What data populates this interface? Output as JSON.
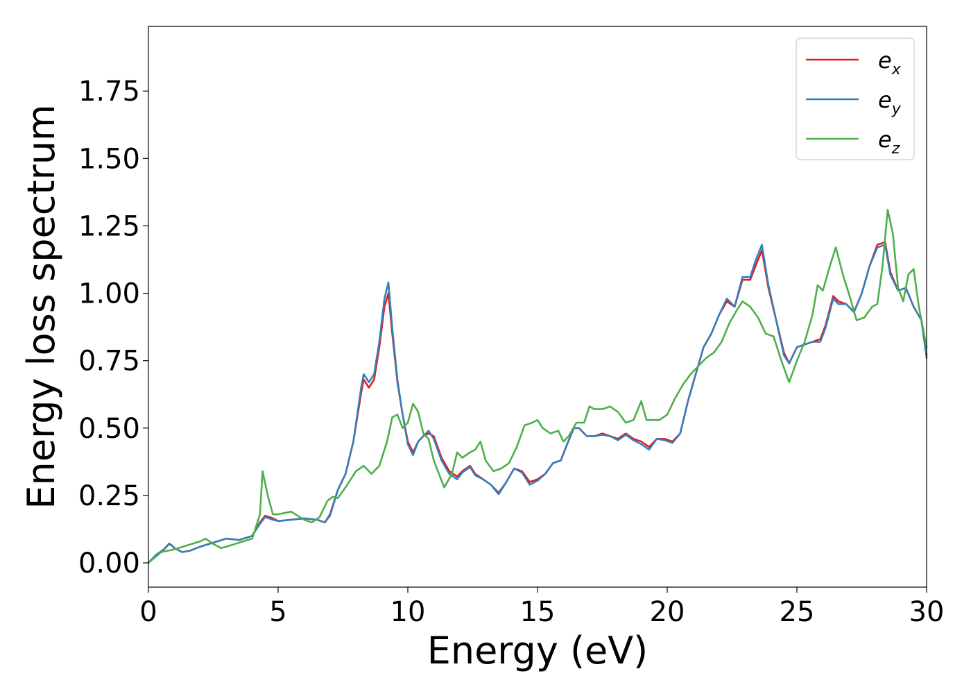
{
  "chart_data": {
    "type": "line",
    "title": "",
    "xlabel": "Energy (eV)",
    "ylabel": "Energy loss spectrum",
    "xlim": [
      0,
      30
    ],
    "ylim": [
      -0.09,
      1.99
    ],
    "xticks": [
      0,
      5,
      10,
      15,
      20,
      25,
      30
    ],
    "xtick_labels": [
      "0",
      "5",
      "10",
      "15",
      "20",
      "25",
      "30"
    ],
    "yticks": [
      0.0,
      0.25,
      0.5,
      0.75,
      1.0,
      1.25,
      1.5,
      1.75
    ],
    "ytick_labels": [
      "0.00",
      "0.25",
      "0.50",
      "0.75",
      "1.00",
      "1.25",
      "1.50",
      "1.75"
    ],
    "grid": false,
    "legend_position": "top-right",
    "series": [
      {
        "name": "e",
        "sub": "x",
        "color": "#e41a1c",
        "x": [
          0,
          0.3,
          0.6,
          0.8,
          0.9,
          1.0,
          1.3,
          1.6,
          2.0,
          2.5,
          3.0,
          3.5,
          4.0,
          4.3,
          4.5,
          4.8,
          5.0,
          5.5,
          6.0,
          6.5,
          6.8,
          7.0,
          7.3,
          7.6,
          7.9,
          8.2,
          8.3,
          8.5,
          8.7,
          8.9,
          9.1,
          9.25,
          9.4,
          9.6,
          9.8,
          10.0,
          10.2,
          10.4,
          10.6,
          10.8,
          11.0,
          11.3,
          11.6,
          11.9,
          12.1,
          12.4,
          12.6,
          12.9,
          13.2,
          13.5,
          13.8,
          14.1,
          14.4,
          14.7,
          15.0,
          15.3,
          15.6,
          15.9,
          16.1,
          16.4,
          16.6,
          16.9,
          17.2,
          17.5,
          17.8,
          18.1,
          18.4,
          18.7,
          19.0,
          19.3,
          19.6,
          19.9,
          20.2,
          20.5,
          20.8,
          21.1,
          21.4,
          21.7,
          22.0,
          22.3,
          22.6,
          22.9,
          23.2,
          23.4,
          23.65,
          23.9,
          24.2,
          24.5,
          24.7,
          25.0,
          25.3,
          25.6,
          25.9,
          26.1,
          26.4,
          26.6,
          26.9,
          27.2,
          27.5,
          27.8,
          28.1,
          28.4,
          28.6,
          28.9,
          29.2,
          29.5,
          29.8,
          30.0
        ],
        "y": [
          0,
          0.03,
          0.05,
          0.07,
          0.065,
          0.055,
          0.04,
          0.045,
          0.06,
          0.075,
          0.09,
          0.085,
          0.1,
          0.15,
          0.175,
          0.165,
          0.155,
          0.16,
          0.165,
          0.16,
          0.15,
          0.18,
          0.27,
          0.33,
          0.45,
          0.63,
          0.68,
          0.65,
          0.68,
          0.8,
          0.95,
          1.0,
          0.85,
          0.67,
          0.55,
          0.45,
          0.41,
          0.45,
          0.47,
          0.48,
          0.47,
          0.39,
          0.34,
          0.32,
          0.34,
          0.36,
          0.33,
          0.31,
          0.29,
          0.26,
          0.3,
          0.35,
          0.34,
          0.3,
          0.31,
          0.33,
          0.37,
          0.38,
          0.43,
          0.5,
          0.5,
          0.47,
          0.47,
          0.48,
          0.47,
          0.46,
          0.48,
          0.46,
          0.45,
          0.43,
          0.46,
          0.46,
          0.45,
          0.48,
          0.6,
          0.7,
          0.8,
          0.85,
          0.92,
          0.97,
          0.95,
          1.05,
          1.05,
          1.1,
          1.16,
          1.02,
          0.9,
          0.78,
          0.74,
          0.8,
          0.81,
          0.82,
          0.83,
          0.88,
          0.99,
          0.97,
          0.96,
          0.93,
          1.0,
          1.1,
          1.18,
          1.19,
          1.08,
          1.01,
          1.02,
          0.95,
          0.9,
          0.77
        ]
      },
      {
        "name": "e",
        "sub": "y",
        "color": "#377eb8",
        "x": [
          0,
          0.3,
          0.6,
          0.8,
          0.9,
          1.0,
          1.3,
          1.6,
          2.0,
          2.5,
          3.0,
          3.5,
          4.0,
          4.3,
          4.5,
          4.8,
          5.0,
          5.5,
          6.0,
          6.5,
          6.8,
          7.0,
          7.3,
          7.6,
          7.9,
          8.2,
          8.3,
          8.5,
          8.7,
          8.9,
          9.1,
          9.25,
          9.4,
          9.6,
          9.8,
          10.0,
          10.2,
          10.4,
          10.6,
          10.8,
          11.0,
          11.3,
          11.6,
          11.9,
          12.1,
          12.4,
          12.6,
          12.9,
          13.2,
          13.5,
          13.8,
          14.1,
          14.4,
          14.7,
          15.0,
          15.3,
          15.6,
          15.9,
          16.1,
          16.4,
          16.6,
          16.9,
          17.2,
          17.5,
          17.8,
          18.1,
          18.4,
          18.7,
          19.0,
          19.3,
          19.6,
          19.9,
          20.2,
          20.5,
          20.8,
          21.1,
          21.4,
          21.7,
          22.0,
          22.3,
          22.6,
          22.9,
          23.2,
          23.4,
          23.65,
          23.9,
          24.2,
          24.5,
          24.7,
          25.0,
          25.3,
          25.6,
          25.9,
          26.1,
          26.4,
          26.6,
          26.9,
          27.2,
          27.5,
          27.8,
          28.1,
          28.4,
          28.6,
          28.9,
          29.2,
          29.5,
          29.8,
          30.0
        ],
        "y": [
          0,
          0.03,
          0.05,
          0.072,
          0.065,
          0.055,
          0.04,
          0.045,
          0.06,
          0.075,
          0.09,
          0.085,
          0.1,
          0.145,
          0.17,
          0.16,
          0.155,
          0.16,
          0.165,
          0.16,
          0.15,
          0.175,
          0.27,
          0.33,
          0.45,
          0.65,
          0.7,
          0.67,
          0.7,
          0.82,
          0.98,
          1.04,
          0.87,
          0.68,
          0.55,
          0.44,
          0.4,
          0.45,
          0.47,
          0.49,
          0.46,
          0.38,
          0.33,
          0.31,
          0.335,
          0.355,
          0.325,
          0.31,
          0.29,
          0.255,
          0.3,
          0.35,
          0.335,
          0.29,
          0.305,
          0.33,
          0.37,
          0.38,
          0.43,
          0.5,
          0.5,
          0.47,
          0.47,
          0.475,
          0.47,
          0.455,
          0.475,
          0.455,
          0.44,
          0.42,
          0.46,
          0.455,
          0.445,
          0.48,
          0.6,
          0.7,
          0.8,
          0.85,
          0.92,
          0.98,
          0.95,
          1.06,
          1.06,
          1.12,
          1.18,
          1.03,
          0.9,
          0.77,
          0.74,
          0.8,
          0.81,
          0.82,
          0.82,
          0.87,
          0.98,
          0.96,
          0.96,
          0.93,
          1.0,
          1.1,
          1.17,
          1.18,
          1.07,
          1.01,
          1.02,
          0.95,
          0.9,
          0.76
        ]
      },
      {
        "name": "e",
        "sub": "z",
        "color": "#4daf4a",
        "x": [
          0,
          0.5,
          1.0,
          1.5,
          2.0,
          2.2,
          2.5,
          2.8,
          3.0,
          3.5,
          4.0,
          4.3,
          4.4,
          4.6,
          4.8,
          5.0,
          5.5,
          6.0,
          6.3,
          6.6,
          6.9,
          7.1,
          7.3,
          7.6,
          8.0,
          8.3,
          8.6,
          8.9,
          9.2,
          9.4,
          9.6,
          9.8,
          10.0,
          10.2,
          10.4,
          10.6,
          10.8,
          11.0,
          11.2,
          11.4,
          11.7,
          11.9,
          12.1,
          12.4,
          12.6,
          12.8,
          13.0,
          13.3,
          13.6,
          13.9,
          14.2,
          14.5,
          14.8,
          15.0,
          15.2,
          15.5,
          15.8,
          16.0,
          16.2,
          16.5,
          16.8,
          17.0,
          17.2,
          17.5,
          17.8,
          18.1,
          18.4,
          18.7,
          19.0,
          19.2,
          19.4,
          19.7,
          20.0,
          20.3,
          20.6,
          20.9,
          21.2,
          21.5,
          21.8,
          22.1,
          22.4,
          22.7,
          22.9,
          23.2,
          23.5,
          23.8,
          24.1,
          24.4,
          24.7,
          25.0,
          25.3,
          25.6,
          25.8,
          26.0,
          26.3,
          26.5,
          26.8,
          27.0,
          27.3,
          27.6,
          27.9,
          28.1,
          28.3,
          28.5,
          28.7,
          28.9,
          29.1,
          29.3,
          29.5,
          29.7,
          30.0
        ],
        "y": [
          0,
          0.04,
          0.05,
          0.065,
          0.08,
          0.09,
          0.07,
          0.055,
          0.06,
          0.075,
          0.09,
          0.18,
          0.34,
          0.25,
          0.18,
          0.18,
          0.19,
          0.16,
          0.15,
          0.17,
          0.23,
          0.245,
          0.24,
          0.28,
          0.34,
          0.36,
          0.33,
          0.36,
          0.45,
          0.54,
          0.55,
          0.5,
          0.52,
          0.59,
          0.56,
          0.48,
          0.46,
          0.38,
          0.33,
          0.28,
          0.33,
          0.41,
          0.39,
          0.41,
          0.42,
          0.45,
          0.38,
          0.34,
          0.35,
          0.37,
          0.43,
          0.51,
          0.52,
          0.53,
          0.5,
          0.48,
          0.49,
          0.45,
          0.47,
          0.52,
          0.52,
          0.58,
          0.57,
          0.57,
          0.58,
          0.56,
          0.52,
          0.53,
          0.6,
          0.53,
          0.53,
          0.53,
          0.55,
          0.61,
          0.66,
          0.7,
          0.73,
          0.76,
          0.78,
          0.82,
          0.89,
          0.94,
          0.97,
          0.95,
          0.91,
          0.85,
          0.84,
          0.75,
          0.67,
          0.75,
          0.82,
          0.92,
          1.03,
          1.01,
          1.11,
          1.17,
          1.06,
          1.0,
          0.9,
          0.91,
          0.95,
          0.96,
          1.1,
          1.31,
          1.22,
          1.02,
          0.97,
          1.07,
          1.09,
          0.95,
          0.8
        ]
      }
    ]
  }
}
